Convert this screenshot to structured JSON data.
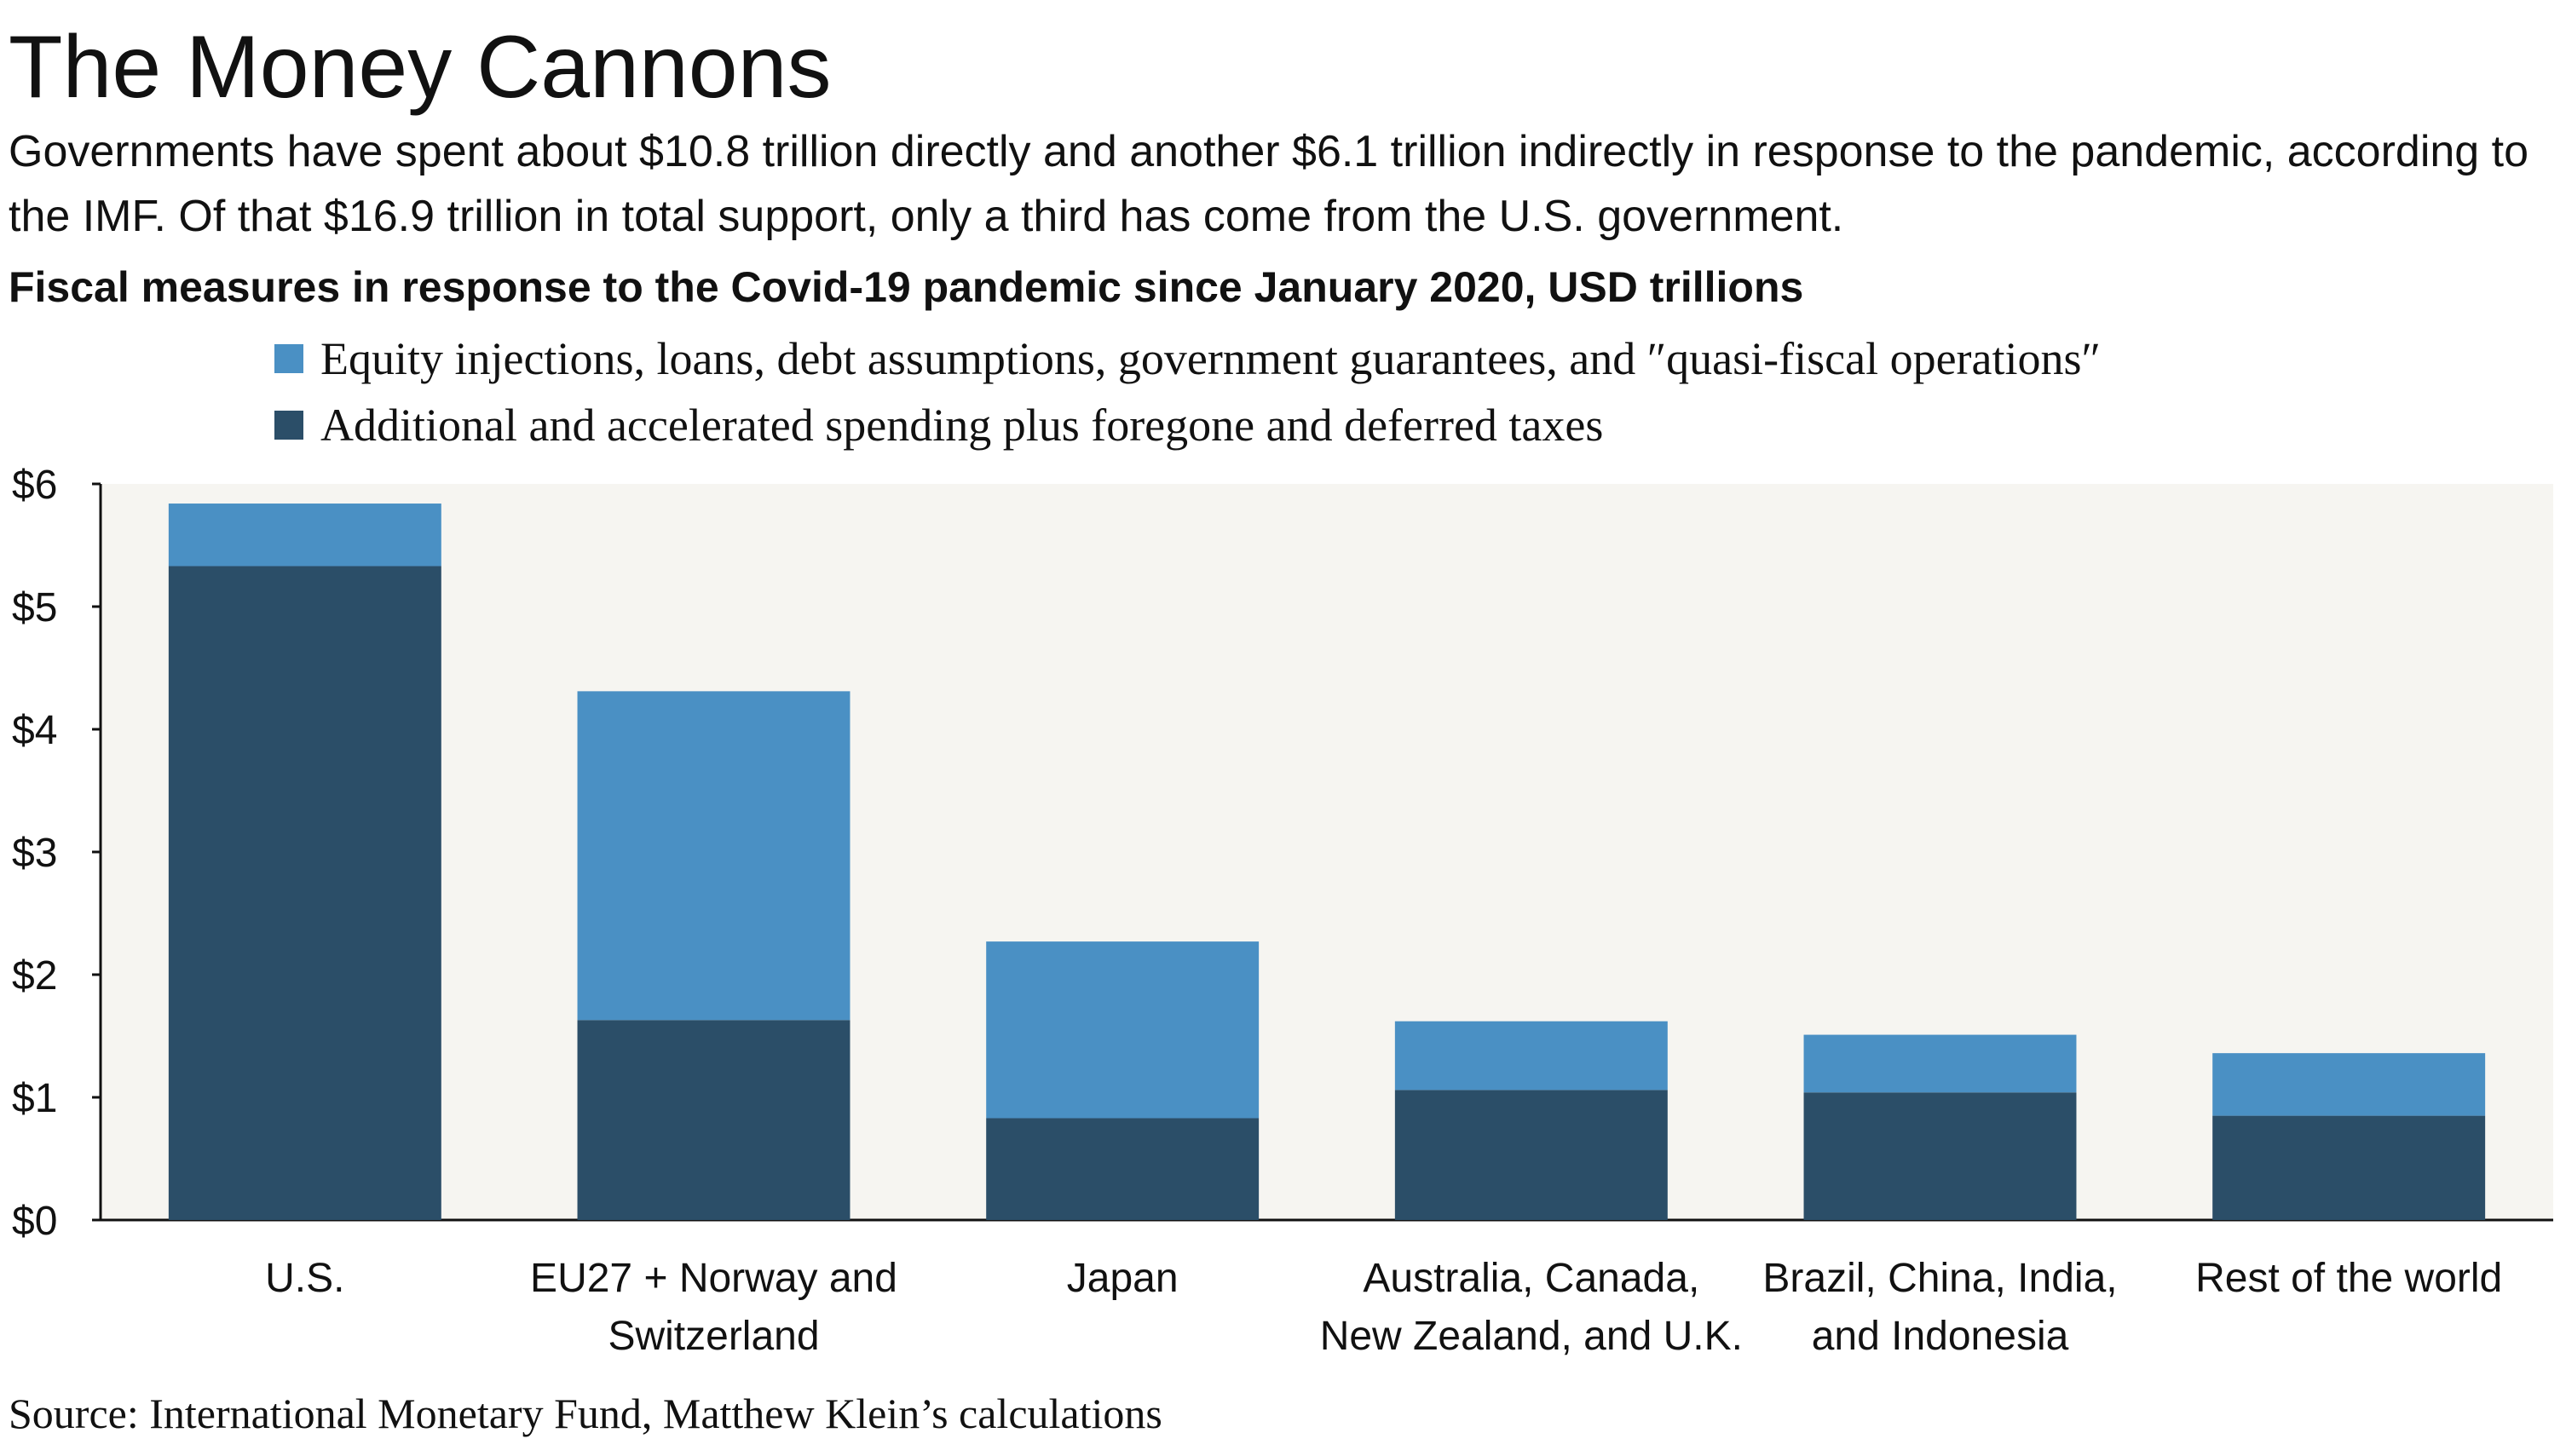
{
  "title": "The Money Cannons",
  "subtitle": "Governments have spent about $10.8 trillion directly and another $6.1 trillion indirectly in response to the pandemic, according to the IMF. Of that $16.9 trillion in total support, only a third has come from the U.S. government.",
  "source": "Source: International Monetary Fund, Matthew Klein’s calculations",
  "colors": {
    "plot_background": "#f6f5f1",
    "indirect": "#4a90c4",
    "direct": "#2b4e68",
    "axis": "#111111"
  },
  "chart_data": {
    "type": "bar",
    "stacked": true,
    "title": "Fiscal measures in response to the Covid-19 pandemic since January 2020, USD trillions",
    "xlabel": "",
    "ylabel": "",
    "ylim": [
      0,
      6
    ],
    "yticks": [
      0,
      1,
      2,
      3,
      4,
      5,
      6
    ],
    "ytick_labels": [
      "$0",
      "$1",
      "$2",
      "$3",
      "$4",
      "$5",
      "$6"
    ],
    "grid": false,
    "legend_position": "top",
    "categories": [
      [
        "U.S."
      ],
      [
        "EU27 + Norway and",
        "Switzerland"
      ],
      [
        "Japan"
      ],
      [
        "Australia, Canada,",
        "New Zealand, and U.K."
      ],
      [
        "Brazil, China, India,",
        "and Indonesia"
      ],
      [
        "Rest of the world"
      ]
    ],
    "series": [
      {
        "name": "Additional and accelerated spending plus foregone and deferred taxes",
        "color": "#2b4e68",
        "values": [
          5.33,
          1.63,
          0.83,
          1.06,
          1.04,
          0.85
        ]
      },
      {
        "name": "Equity injections, loans, debt assumptions, government guarantees, and ″quasi-fiscal operations″",
        "color": "#4a90c4",
        "values": [
          0.51,
          2.68,
          1.44,
          0.56,
          0.47,
          0.51
        ]
      }
    ],
    "legend_order": [
      1,
      0
    ]
  }
}
